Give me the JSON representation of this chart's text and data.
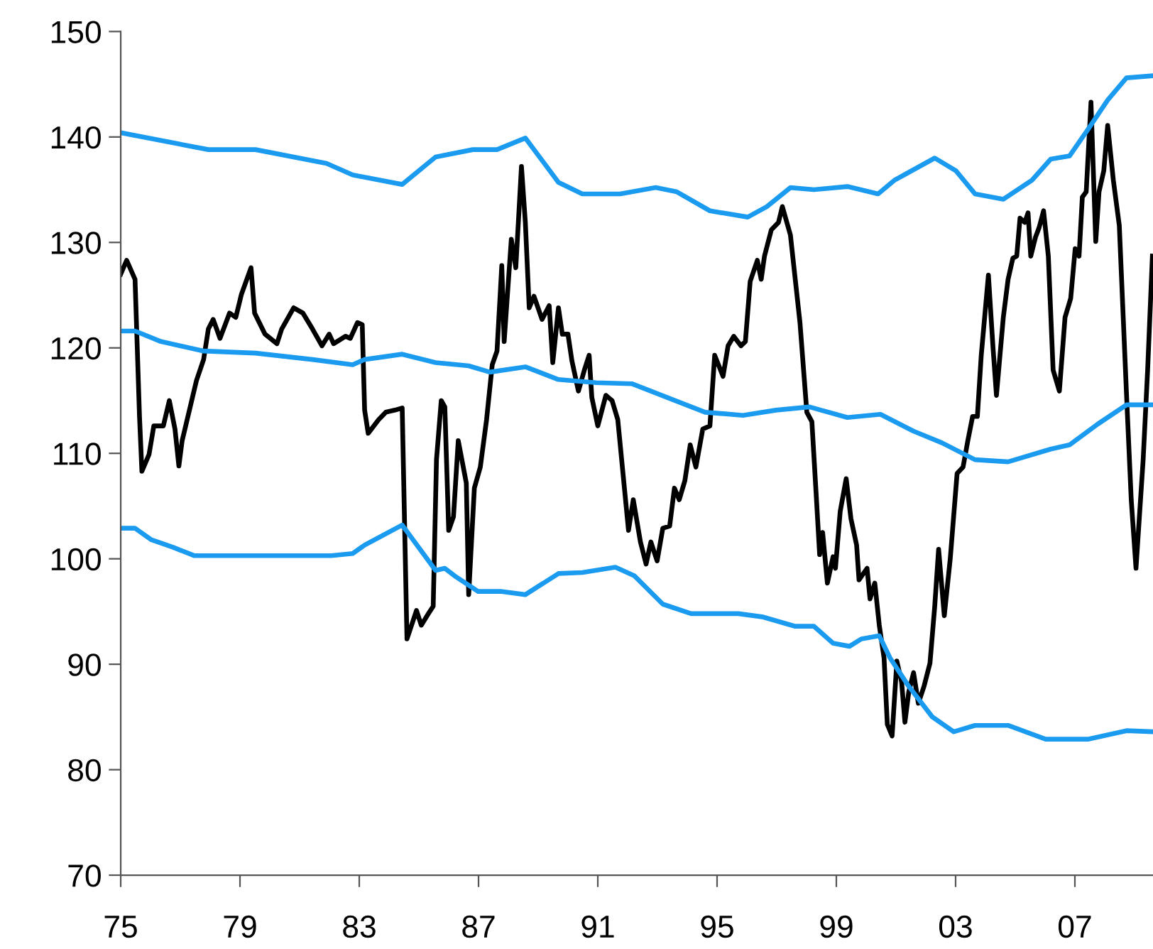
{
  "chart_data": {
    "type": "line",
    "xlim": [
      1975,
      2009.62
    ],
    "ylim": [
      70,
      150
    ],
    "yticks": [
      70,
      80,
      90,
      100,
      110,
      120,
      130,
      140,
      150
    ],
    "xticks": [
      {
        "value": 1975,
        "label": "75"
      },
      {
        "value": 1979,
        "label": "79"
      },
      {
        "value": 1983,
        "label": "83"
      },
      {
        "value": 1987,
        "label": "87"
      },
      {
        "value": 1991,
        "label": "91"
      },
      {
        "value": 1995,
        "label": "95"
      },
      {
        "value": 1999,
        "label": "99"
      },
      {
        "value": 2003,
        "label": "03"
      },
      {
        "value": 2007,
        "label": "07"
      }
    ],
    "grid": false,
    "legend": false,
    "marker": "none",
    "line_style": "solid",
    "series": [
      {
        "color": "#000000",
        "x": [
          1975.0,
          1975.2,
          1975.48,
          1975.63,
          1975.71,
          1975.95,
          1976.11,
          1976.43,
          1976.63,
          1976.82,
          1976.95,
          1977.06,
          1977.54,
          1977.78,
          1977.94,
          1978.1,
          1978.33,
          1978.65,
          1978.86,
          1979.05,
          1979.37,
          1979.49,
          1979.84,
          1980.24,
          1980.4,
          1980.8,
          1981.11,
          1981.43,
          1981.75,
          1981.99,
          1982.14,
          1982.54,
          1982.7,
          1982.94,
          1983.1,
          1983.18,
          1983.3,
          1983.65,
          1983.89,
          1984.2,
          1984.44,
          1984.6,
          1984.92,
          1985.08,
          1985.32,
          1985.48,
          1985.59,
          1985.75,
          1985.87,
          1986.0,
          1986.16,
          1986.32,
          1986.59,
          1986.67,
          1986.86,
          1987.06,
          1987.27,
          1987.46,
          1987.62,
          1987.78,
          1987.86,
          1988.1,
          1988.25,
          1988.44,
          1988.57,
          1988.7,
          1988.86,
          1989.13,
          1989.37,
          1989.49,
          1989.68,
          1989.81,
          1990.0,
          1990.13,
          1990.35,
          1990.56,
          1990.71,
          1990.8,
          1991.0,
          1991.27,
          1991.48,
          1991.67,
          1992.03,
          1992.19,
          1992.43,
          1992.62,
          1992.78,
          1992.99,
          1993.18,
          1993.41,
          1993.57,
          1993.73,
          1993.92,
          1994.1,
          1994.29,
          1994.52,
          1994.76,
          1994.92,
          1995.2,
          1995.37,
          1995.56,
          1995.8,
          1995.95,
          1996.11,
          1996.35,
          1996.48,
          1996.59,
          1996.82,
          1997.06,
          1997.19,
          1997.46,
          1997.78,
          1998.01,
          1998.18,
          1998.33,
          1998.44,
          1998.54,
          1998.7,
          1998.89,
          1998.97,
          1999.13,
          1999.33,
          1999.49,
          1999.68,
          1999.76,
          2000.03,
          2000.13,
          2000.29,
          2000.44,
          2000.6,
          2000.71,
          2000.87,
          2001.03,
          2001.19,
          2001.3,
          2001.43,
          2001.59,
          2001.75,
          2001.94,
          2002.14,
          2002.3,
          2002.43,
          2002.62,
          2002.82,
          2003.05,
          2003.25,
          2003.41,
          2003.57,
          2003.73,
          2003.86,
          2004.1,
          2004.25,
          2004.37,
          2004.6,
          2004.76,
          2004.92,
          2005.05,
          2005.16,
          2005.32,
          2005.43,
          2005.52,
          2005.68,
          2005.8,
          2005.95,
          2006.11,
          2006.27,
          2006.48,
          2006.67,
          2006.86,
          2007.01,
          2007.14,
          2007.25,
          2007.38,
          2007.54,
          2007.7,
          2007.81,
          2007.97,
          2008.1,
          2008.29,
          2008.49,
          2008.73,
          2008.89,
          2009.05,
          2009.29,
          2009.44,
          2009.6
        ],
        "values": [
          127.0,
          128.3,
          126.5,
          113.5,
          108.3,
          109.9,
          112.6,
          112.6,
          115.0,
          112.3,
          108.8,
          111.2,
          116.9,
          118.9,
          121.8,
          122.7,
          120.9,
          123.3,
          122.9,
          125.1,
          127.6,
          123.3,
          121.3,
          120.4,
          121.8,
          123.8,
          123.3,
          121.8,
          120.2,
          121.3,
          120.4,
          121.1,
          120.9,
          122.4,
          122.2,
          114.1,
          111.9,
          113.2,
          113.9,
          114.1,
          114.3,
          92.4,
          95.1,
          93.7,
          94.8,
          95.5,
          109.4,
          115.0,
          114.4,
          102.7,
          104.0,
          111.2,
          107.2,
          96.6,
          106.7,
          108.7,
          113.2,
          118.4,
          119.7,
          127.8,
          120.6,
          130.3,
          127.6,
          137.2,
          131.9,
          123.8,
          124.9,
          122.7,
          124.0,
          118.6,
          123.8,
          121.3,
          121.3,
          118.8,
          115.9,
          118.0,
          119.3,
          115.3,
          112.6,
          115.5,
          115.0,
          113.2,
          102.7,
          105.6,
          101.6,
          99.5,
          101.6,
          99.8,
          102.9,
          103.1,
          106.7,
          105.6,
          107.4,
          110.8,
          108.7,
          112.3,
          112.6,
          119.3,
          117.3,
          120.2,
          121.1,
          120.2,
          120.6,
          126.3,
          128.3,
          126.5,
          128.7,
          131.2,
          131.9,
          133.4,
          130.7,
          122.4,
          113.9,
          113.0,
          105.8,
          100.4,
          102.5,
          97.7,
          100.2,
          99.1,
          104.5,
          107.6,
          103.8,
          101.3,
          98.0,
          99.1,
          96.2,
          97.7,
          93.7,
          90.6,
          84.3,
          83.2,
          90.3,
          88.3,
          84.5,
          87.4,
          89.2,
          86.3,
          87.9,
          90.1,
          95.5,
          100.9,
          94.6,
          100.0,
          108.1,
          108.7,
          111.2,
          113.5,
          113.5,
          119.3,
          126.9,
          120.2,
          115.5,
          122.9,
          126.5,
          128.5,
          128.7,
          132.3,
          131.9,
          132.8,
          128.7,
          130.5,
          131.4,
          133.0,
          128.7,
          117.9,
          115.9,
          122.9,
          124.7,
          129.4,
          128.7,
          134.3,
          134.8,
          143.3,
          130.1,
          134.8,
          136.8,
          141.1,
          135.9,
          131.6,
          115.7,
          105.6,
          99.1,
          109.4,
          117.9,
          128.7
        ]
      },
      {
        "color": "#1a9bef",
        "x": [
          1975.0,
          1977.94,
          1979.52,
          1981.9,
          1982.78,
          1984.44,
          1985.56,
          1986.81,
          1987.62,
          1988.57,
          1989.68,
          1990.48,
          1991.75,
          1992.94,
          1993.65,
          1994.76,
          1996.03,
          1996.67,
          1997.46,
          1998.25,
          1999.37,
          2000.4,
          2000.95,
          2002.3,
          2003.01,
          2003.65,
          2004.6,
          2005.56,
          2006.19,
          2006.82,
          2007.46,
          2008.1,
          2008.73,
          2009.6
        ],
        "values": [
          140.4,
          138.8,
          138.8,
          137.5,
          136.4,
          135.5,
          138.1,
          138.8,
          138.8,
          139.9,
          135.7,
          134.6,
          134.6,
          135.2,
          134.8,
          133.0,
          132.4,
          133.4,
          135.2,
          135.0,
          135.3,
          134.6,
          135.9,
          138.0,
          136.8,
          134.6,
          134.1,
          135.9,
          137.9,
          138.2,
          140.8,
          143.5,
          145.6,
          145.8
        ]
      },
      {
        "color": "#1a9bef",
        "x": [
          1975.0,
          1975.48,
          1976.35,
          1977.78,
          1979.52,
          1981.43,
          1982.78,
          1983.18,
          1984.44,
          1985.56,
          1986.67,
          1987.38,
          1988.57,
          1989.68,
          1990.95,
          1992.14,
          1993.33,
          1994.6,
          1995.87,
          1996.98,
          1998.1,
          1999.37,
          2000.48,
          2001.59,
          2002.54,
          2003.65,
          2004.76,
          2006.19,
          2006.82,
          2007.78,
          2008.73,
          2009.6
        ],
        "values": [
          121.6,
          121.6,
          120.6,
          119.7,
          119.5,
          118.9,
          118.4,
          118.9,
          119.4,
          118.6,
          118.3,
          117.7,
          118.2,
          117.0,
          116.7,
          116.6,
          115.3,
          113.9,
          113.6,
          114.1,
          114.4,
          113.4,
          113.7,
          112.1,
          111.0,
          109.4,
          109.2,
          110.4,
          110.8,
          112.8,
          114.6,
          114.6
        ]
      },
      {
        "color": "#1a9bef",
        "x": [
          1975.0,
          1975.48,
          1976.03,
          1976.75,
          1977.46,
          1979.52,
          1982.06,
          1982.78,
          1983.18,
          1984.44,
          1985.56,
          1985.87,
          1986.19,
          1986.99,
          1987.78,
          1988.57,
          1989.68,
          1990.48,
          1991.59,
          1992.22,
          1993.18,
          1994.13,
          1995.71,
          1996.51,
          1997.62,
          1998.25,
          1998.89,
          1999.44,
          1999.84,
          2000.44,
          2000.8,
          2001.43,
          2002.22,
          2002.94,
          2003.65,
          2004.76,
          2006.02,
          2007.46,
          2008.73,
          2009.6
        ],
        "values": [
          102.9,
          102.9,
          101.8,
          101.1,
          100.3,
          100.3,
          100.3,
          100.5,
          101.3,
          103.2,
          98.9,
          99.1,
          98.4,
          96.9,
          96.9,
          96.6,
          98.6,
          98.7,
          99.2,
          98.4,
          95.7,
          94.8,
          94.8,
          94.5,
          93.6,
          93.6,
          92.0,
          91.7,
          92.4,
          92.7,
          90.6,
          87.9,
          85.0,
          83.6,
          84.2,
          84.2,
          82.9,
          82.9,
          83.7,
          83.6
        ]
      }
    ]
  }
}
